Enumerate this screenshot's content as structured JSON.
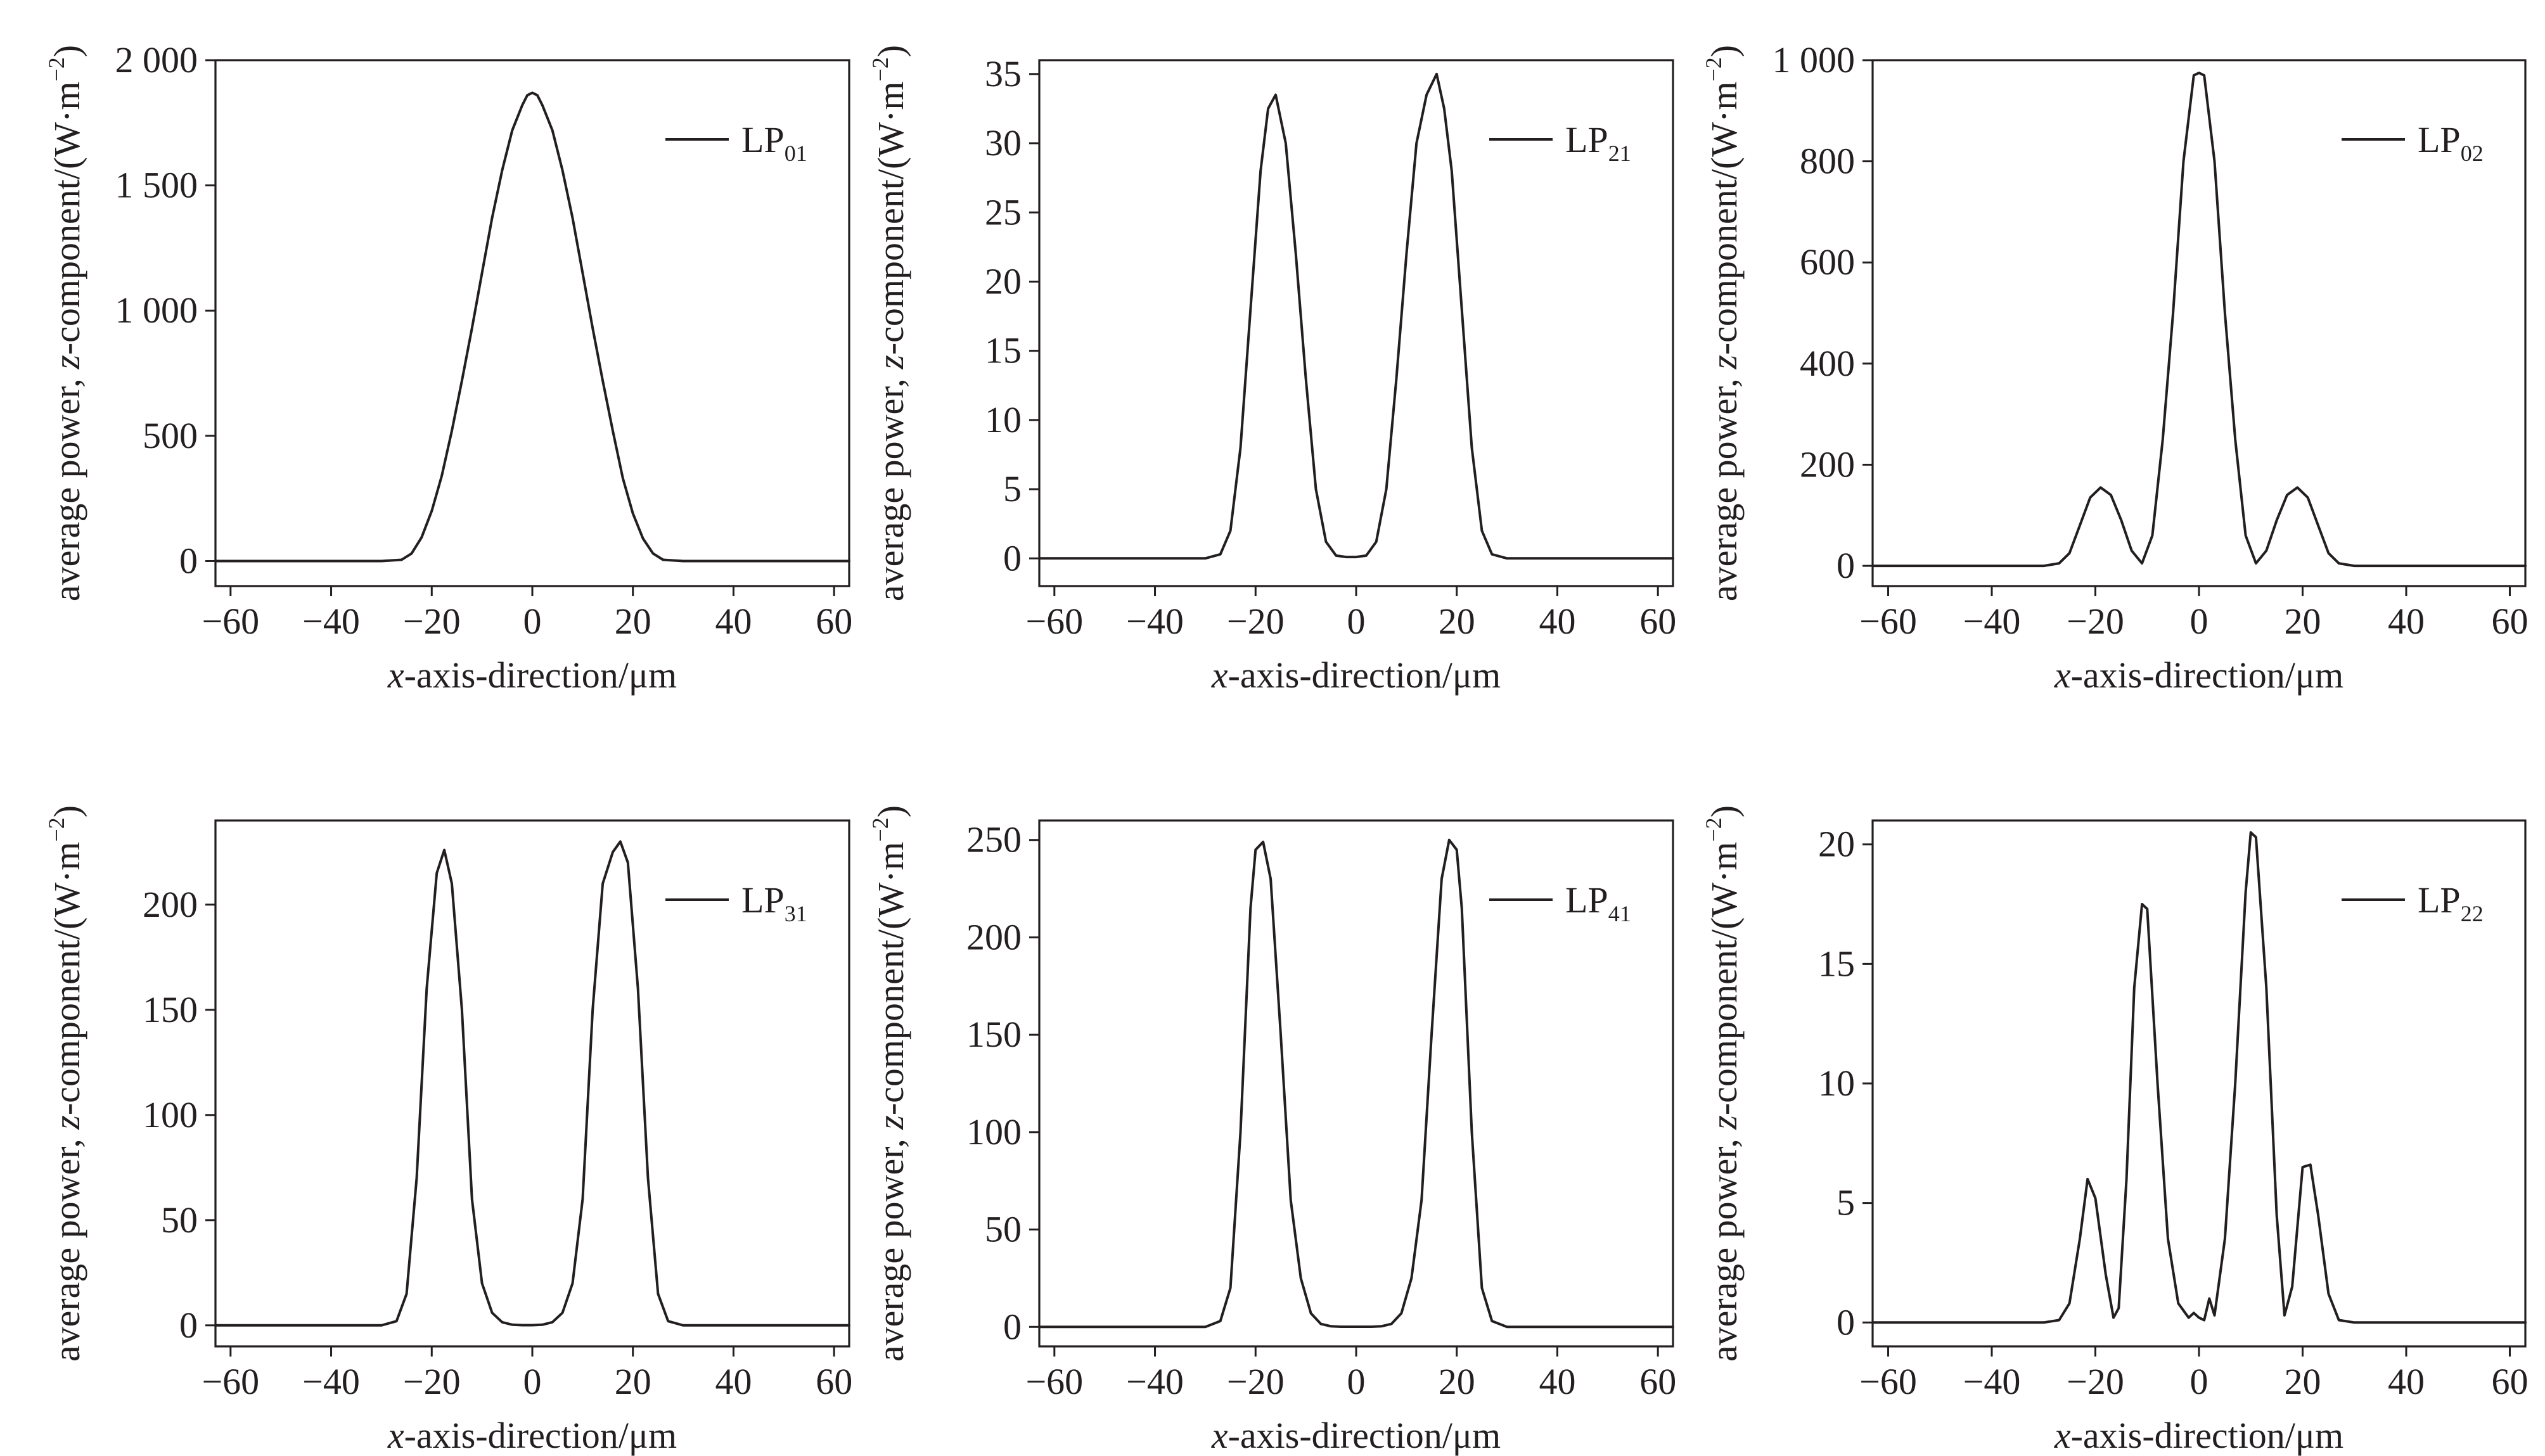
{
  "chart_data": [
    {
      "type": "line",
      "xlabel_prefix": "x",
      "xlabel_rest": "-axis-direction/μm",
      "ylabel_pre": "average power, ",
      "ylabel_z": "z",
      "ylabel_post": "-component/(W·m",
      "ylabel_exp": "−2",
      "ylabel_close": ")",
      "xlim": [
        -63,
        63
      ],
      "ylim": [
        -100,
        2000
      ],
      "xticks": [
        -60,
        -40,
        -20,
        0,
        20,
        40,
        60
      ],
      "xtick_labels": [
        "−60",
        "−40",
        "−20",
        "0",
        "20",
        "40",
        "60"
      ],
      "yticks": [
        0,
        500,
        1000,
        1500,
        2000
      ],
      "ytick_labels": [
        "0",
        "500",
        "1 000",
        "1 500",
        "2 000"
      ],
      "series": [
        {
          "name_main": "LP",
          "name_sub": "01",
          "x": [
            -63,
            -30,
            -26,
            -24,
            -22,
            -20,
            -18,
            -16,
            -14,
            -12,
            -10,
            -8,
            -6,
            -4,
            -2,
            -1,
            0,
            1,
            2,
            4,
            6,
            8,
            10,
            12,
            14,
            16,
            18,
            20,
            22,
            24,
            26,
            30,
            63
          ],
          "y": [
            0,
            0,
            5,
            30,
            95,
            200,
            340,
            520,
            720,
            930,
            1150,
            1370,
            1560,
            1720,
            1820,
            1860,
            1870,
            1860,
            1820,
            1720,
            1560,
            1370,
            1150,
            930,
            720,
            520,
            330,
            190,
            90,
            30,
            5,
            0,
            0
          ]
        }
      ]
    },
    {
      "type": "line",
      "xlabel_prefix": "x",
      "xlabel_rest": "-axis-direction/μm",
      "ylabel_pre": "average power, ",
      "ylabel_z": "z",
      "ylabel_post": "-component/(W·m",
      "ylabel_exp": "−2",
      "ylabel_close": ")",
      "xlim": [
        -63,
        63
      ],
      "ylim": [
        -2,
        36
      ],
      "xticks": [
        -60,
        -40,
        -20,
        0,
        20,
        40,
        60
      ],
      "xtick_labels": [
        "−60",
        "−40",
        "−20",
        "0",
        "20",
        "40",
        "60"
      ],
      "yticks": [
        0,
        5,
        10,
        15,
        20,
        25,
        30,
        35
      ],
      "ytick_labels": [
        "0",
        "5",
        "10",
        "15",
        "20",
        "25",
        "30",
        "35"
      ],
      "series": [
        {
          "name_main": "LP",
          "name_sub": "21",
          "x": [
            -63,
            -30,
            -27,
            -25,
            -23,
            -21,
            -19,
            -17.5,
            -16,
            -14,
            -12,
            -10,
            -8,
            -6,
            -4,
            -2,
            0,
            2,
            4,
            6,
            8,
            10,
            12,
            14,
            16,
            17.5,
            19,
            21,
            23,
            25,
            27,
            30,
            63
          ],
          "y": [
            0,
            0,
            0.3,
            2,
            8,
            18,
            28,
            32.5,
            33.5,
            30,
            22,
            13,
            5,
            1.2,
            0.2,
            0.1,
            0.1,
            0.2,
            1.2,
            5,
            13,
            22,
            30,
            33.5,
            35,
            32.5,
            28,
            18,
            8,
            2,
            0.3,
            0,
            0
          ]
        }
      ]
    },
    {
      "type": "line",
      "xlabel_prefix": "x",
      "xlabel_rest": "-axis-direction/μm",
      "ylabel_pre": "average power, ",
      "ylabel_z": "z",
      "ylabel_post": "-component/(W·m",
      "ylabel_exp": "−2",
      "ylabel_close": ")",
      "xlim": [
        -63,
        63
      ],
      "ylim": [
        -40,
        1000
      ],
      "xticks": [
        -60,
        -40,
        -20,
        0,
        20,
        40,
        60
      ],
      "xtick_labels": [
        "−60",
        "−40",
        "−20",
        "0",
        "20",
        "40",
        "60"
      ],
      "yticks": [
        0,
        200,
        400,
        600,
        800,
        1000
      ],
      "ytick_labels": [
        "0",
        "200",
        "400",
        "600",
        "800",
        "1 000"
      ],
      "series": [
        {
          "name_main": "LP",
          "name_sub": "02",
          "x": [
            -63,
            -30,
            -27,
            -25,
            -23,
            -21,
            -19,
            -17,
            -15,
            -13,
            -11,
            -9,
            -7,
            -5,
            -3,
            -1,
            0,
            1,
            3,
            5,
            7,
            9,
            11,
            13,
            15,
            17,
            19,
            21,
            23,
            25,
            27,
            30,
            63
          ],
          "y": [
            0,
            0,
            5,
            25,
            80,
            135,
            155,
            140,
            90,
            30,
            5,
            60,
            250,
            500,
            800,
            970,
            975,
            970,
            800,
            500,
            250,
            60,
            5,
            30,
            90,
            140,
            155,
            135,
            80,
            25,
            5,
            0,
            0
          ]
        }
      ]
    },
    {
      "type": "line",
      "xlabel_prefix": "x",
      "xlabel_rest": "-axis-direction/μm",
      "ylabel_pre": "average power, ",
      "ylabel_z": "z",
      "ylabel_post": "-component/(W·m",
      "ylabel_exp": "−2",
      "ylabel_close": ")",
      "xlim": [
        -63,
        63
      ],
      "ylim": [
        -10,
        240
      ],
      "xticks": [
        -60,
        -40,
        -20,
        0,
        20,
        40,
        60
      ],
      "xtick_labels": [
        "−60",
        "−40",
        "−20",
        "0",
        "20",
        "40",
        "60"
      ],
      "yticks": [
        0,
        50,
        100,
        150,
        200
      ],
      "ytick_labels": [
        "0",
        "50",
        "100",
        "150",
        "200"
      ],
      "series": [
        {
          "name_main": "LP",
          "name_sub": "31",
          "x": [
            -63,
            -30,
            -27,
            -25,
            -23,
            -21,
            -19,
            -17.5,
            -16,
            -14,
            -12,
            -10,
            -8,
            -6,
            -4,
            -2,
            0,
            2,
            4,
            6,
            8,
            10,
            12,
            14,
            16,
            17.5,
            19,
            21,
            23,
            25,
            27,
            30,
            63
          ],
          "y": [
            0,
            0,
            2,
            15,
            70,
            160,
            215,
            226,
            210,
            150,
            60,
            20,
            6,
            1.5,
            0.3,
            0.1,
            0.1,
            0.3,
            1.5,
            6,
            20,
            60,
            150,
            210,
            225,
            230,
            220,
            160,
            70,
            15,
            2,
            0,
            0
          ]
        }
      ]
    },
    {
      "type": "line",
      "xlabel_prefix": "x",
      "xlabel_rest": "-axis-direction/μm",
      "ylabel_pre": "average power, ",
      "ylabel_z": "z",
      "ylabel_post": "-component/(W·m",
      "ylabel_exp": "−2",
      "ylabel_close": ")",
      "xlim": [
        -63,
        63
      ],
      "ylim": [
        -10,
        260
      ],
      "xticks": [
        -60,
        -40,
        -20,
        0,
        20,
        40,
        60
      ],
      "xtick_labels": [
        "−60",
        "−40",
        "−20",
        "0",
        "20",
        "40",
        "60"
      ],
      "yticks": [
        0,
        50,
        100,
        150,
        200,
        250
      ],
      "ytick_labels": [
        "0",
        "50",
        "100",
        "150",
        "200",
        "250"
      ],
      "series": [
        {
          "name_main": "LP",
          "name_sub": "41",
          "x": [
            -63,
            -30,
            -27,
            -25,
            -23,
            -21,
            -20,
            -18.5,
            -17,
            -15,
            -13,
            -11,
            -9,
            -7,
            -5,
            -3,
            0,
            3,
            5,
            7,
            9,
            11,
            13,
            15,
            17,
            18.5,
            20,
            21,
            23,
            25,
            27,
            30,
            63
          ],
          "y": [
            0,
            0,
            3,
            20,
            100,
            215,
            245,
            249,
            230,
            150,
            65,
            25,
            7,
            1.5,
            0.3,
            0.1,
            0.1,
            0.1,
            0.3,
            1.5,
            7,
            25,
            65,
            150,
            230,
            250,
            245,
            215,
            100,
            20,
            3,
            0,
            0
          ]
        }
      ]
    },
    {
      "type": "line",
      "xlabel_prefix": "x",
      "xlabel_rest": "-axis-direction/μm",
      "ylabel_pre": "average power, ",
      "ylabel_z": "z",
      "ylabel_post": "-component/(W·m",
      "ylabel_exp": "−2",
      "ylabel_close": ")",
      "xlim": [
        -63,
        63
      ],
      "ylim": [
        -1,
        21
      ],
      "xticks": [
        -60,
        -40,
        -20,
        0,
        20,
        40,
        60
      ],
      "xtick_labels": [
        "−60",
        "−40",
        "−20",
        "0",
        "20",
        "40",
        "60"
      ],
      "yticks": [
        0,
        5,
        10,
        15,
        20
      ],
      "ytick_labels": [
        "0",
        "5",
        "10",
        "15",
        "20"
      ],
      "series": [
        {
          "name_main": "LP",
          "name_sub": "22",
          "x": [
            -63,
            -30,
            -27,
            -25,
            -23,
            -21.5,
            -20,
            -18,
            -16.5,
            -15.5,
            -14,
            -12.5,
            -11,
            -10,
            -8,
            -6,
            -4,
            -2,
            -1,
            0,
            1,
            2,
            3,
            5,
            7,
            9,
            10,
            11,
            13,
            15,
            16.5,
            18,
            20,
            21.5,
            23,
            25,
            27,
            30,
            63
          ],
          "y": [
            0,
            0,
            0.1,
            0.8,
            3.5,
            6,
            5.2,
            2,
            0.2,
            0.6,
            6,
            14,
            17.5,
            17.3,
            10,
            3.5,
            0.8,
            0.2,
            0.4,
            0.2,
            0.1,
            1,
            0.3,
            3.5,
            10,
            18,
            20.5,
            20.3,
            14,
            4.5,
            0.3,
            1.5,
            6.5,
            6.6,
            4.5,
            1.2,
            0.1,
            0,
            0
          ]
        }
      ]
    }
  ]
}
